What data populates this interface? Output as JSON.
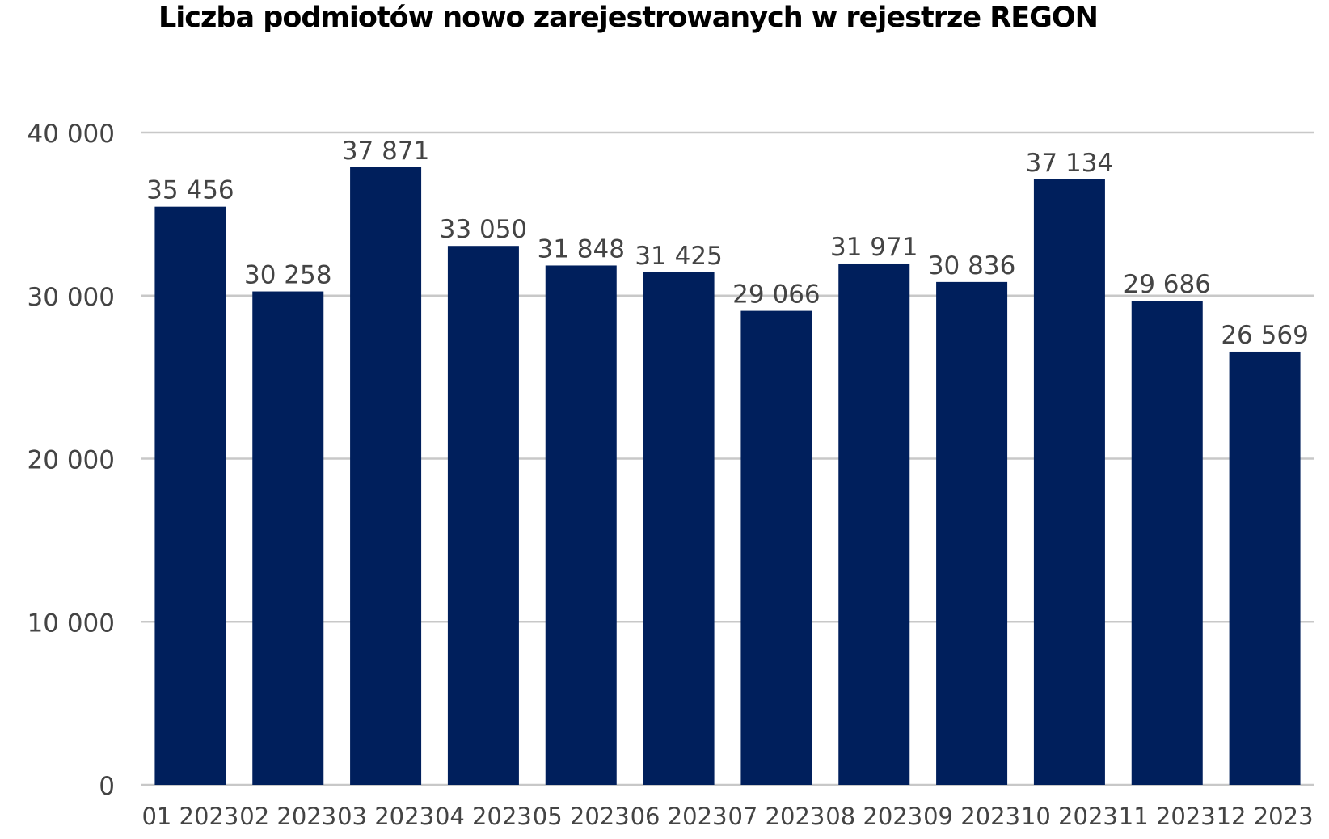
{
  "chart_data": {
    "type": "bar",
    "title": "Liczba podmiotów nowo zarejestrowanych w rejestrze REGON",
    "xlabel": "",
    "ylabel": "",
    "categories": [
      "01 2023",
      "02 2023",
      "03 2023",
      "04 2023",
      "05 2023",
      "06 2023",
      "07 2023",
      "08 2023",
      "09 2023",
      "10 2023",
      "11 2023",
      "12 2023"
    ],
    "values": [
      35456,
      30258,
      37871,
      33050,
      31848,
      31425,
      29066,
      31971,
      30836,
      37134,
      29686,
      26569
    ],
    "value_labels": [
      "35 456",
      "30 258",
      "37 871",
      "33 050",
      "31 848",
      "31 425",
      "29 066",
      "31 971",
      "30 836",
      "37 134",
      "29 686",
      "26 569"
    ],
    "ylim": [
      0,
      40000
    ],
    "yticks": [
      0,
      10000,
      20000,
      30000,
      40000
    ],
    "ytick_labels": [
      "0",
      "10 000",
      "20 000",
      "30 000",
      "40 000"
    ],
    "grid": true,
    "legend": "none",
    "colors": {
      "bar": "#001f5c",
      "grid": "#c8c8c8",
      "text": "#444444"
    }
  }
}
